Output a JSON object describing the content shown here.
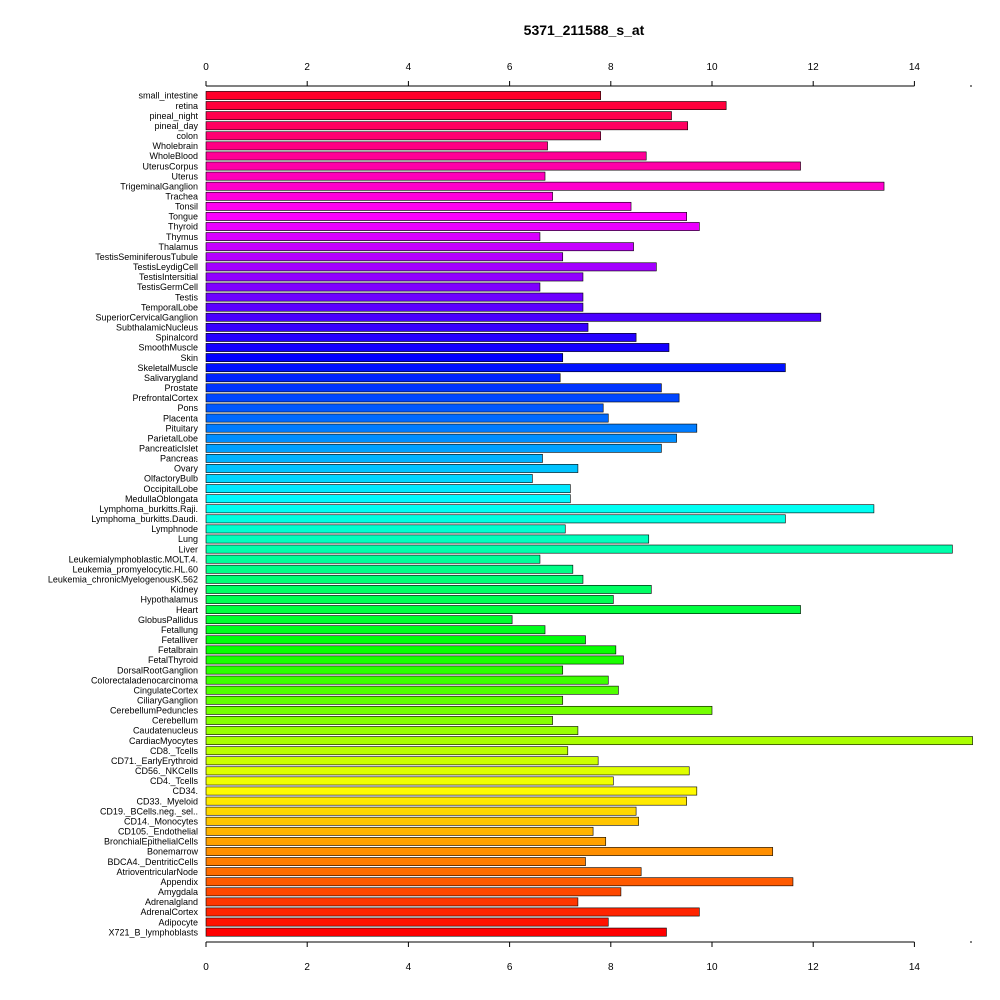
{
  "chart_data": {
    "type": "bar",
    "orientation": "horizontal",
    "title": "5371_211588_s_at",
    "xlabel": "",
    "ylabel": "",
    "xlim": [
      0,
      15.2
    ],
    "xticks": [
      0,
      2,
      4,
      6,
      8,
      10,
      12,
      14
    ],
    "grid": false,
    "color_scheme": "rainbow",
    "categories": [
      "small_intestine",
      "retina",
      "pineal_night",
      "pineal_day",
      "colon",
      "Wholebrain",
      "WholeBlood",
      "UterusCorpus",
      "Uterus",
      "TrigeminalGanglion",
      "Trachea",
      "Tonsil",
      "Tongue",
      "Thyroid",
      "Thymus",
      "Thalamus",
      "TestisSeminiferousTubule",
      "TestisLeydigCell",
      "TestisIntersitial",
      "TestisGermCell",
      "Testis",
      "TemporalLobe",
      "SuperiorCervicalGanglion",
      "SubthalamicNucleus",
      "Spinalcord",
      "SmoothMuscle",
      "Skin",
      "SkeletalMuscle",
      "Salivarygland",
      "Prostate",
      "PrefrontalCortex",
      "Pons",
      "Placenta",
      "Pituitary",
      "ParietalLobe",
      "PancreaticIslet",
      "Pancreas",
      "Ovary",
      "OlfactoryBulb",
      "OccipitalLobe",
      "MedullaOblongata",
      "Lymphoma_burkitts.Raji.",
      "Lymphoma_burkitts.Daudi.",
      "Lymphnode",
      "Lung",
      "Liver",
      "Leukemialymphoblastic.MOLT.4.",
      "Leukemia_promyelocytic.HL.60",
      "Leukemia_chronicMyelogenousK.562",
      "Kidney",
      "Hypothalamus",
      "Heart",
      "GlobusPallidus",
      "Fetallung",
      "Fetalliver",
      "Fetalbrain",
      "FetalThyroid",
      "DorsalRootGanglion",
      "Colorectaladenocarcinoma",
      "CingulateCortex",
      "CiliaryGanglion",
      "CerebellumPeduncles",
      "Cerebellum",
      "Caudatenucleus",
      "CardiacMyocytes",
      "CD8._Tcells",
      "CD71._EarlyErythroid",
      "CD56._NKCells",
      "CD4._Tcells",
      "CD34.",
      "CD33._Myeloid",
      "CD19._BCells.neg._sel..",
      "CD14._Monocytes",
      "CD105._Endothelial",
      "BronchialEpithelialCells",
      "Bonemarrow",
      "BDCA4._DentriticCells",
      "AtrioventricularNode",
      "Appendix",
      "Amygdala",
      "Adrenalgland",
      "AdrenalCortex",
      "Adipocyte",
      "X721_B_lymphoblasts"
    ],
    "values": [
      7.8,
      10.28,
      9.2,
      9.52,
      7.8,
      6.75,
      8.7,
      11.75,
      6.7,
      13.4,
      6.85,
      8.4,
      9.5,
      9.75,
      6.6,
      8.45,
      7.05,
      8.9,
      7.45,
      6.6,
      7.45,
      7.45,
      12.15,
      7.55,
      8.5,
      9.15,
      7.05,
      11.45,
      7.0,
      9.0,
      9.35,
      7.85,
      7.95,
      9.7,
      9.3,
      9.0,
      6.65,
      7.35,
      6.45,
      7.2,
      7.2,
      13.2,
      11.45,
      7.1,
      8.75,
      14.75,
      6.6,
      7.25,
      7.45,
      8.8,
      8.05,
      11.75,
      6.05,
      6.7,
      7.5,
      8.1,
      8.25,
      7.05,
      7.95,
      8.15,
      7.05,
      10.0,
      6.85,
      7.35,
      15.15,
      7.15,
      7.75,
      9.55,
      8.05,
      9.7,
      9.5,
      8.5,
      8.55,
      7.65,
      7.9,
      11.2,
      7.5,
      8.6,
      11.6,
      8.2,
      7.35,
      9.75,
      7.95,
      9.1
    ]
  }
}
